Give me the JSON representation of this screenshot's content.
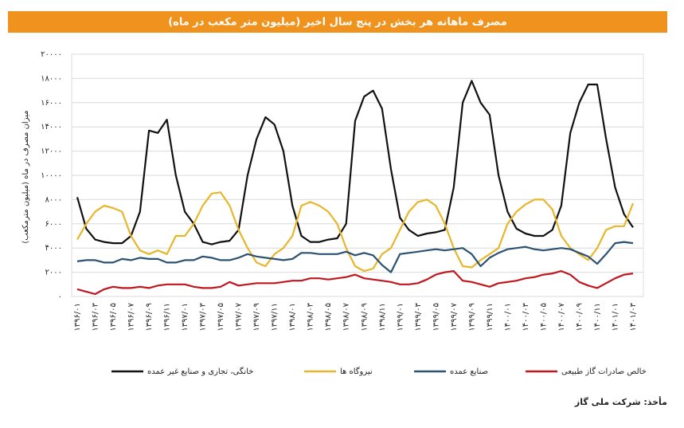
{
  "chart_data": {
    "type": "line",
    "title": "مصرف ماهانه هر بخش در پنج سال اخیر (میلیون متر مکعب در ماه)",
    "y_label": "میزان مصرف در ماه (میلیون مترمکعب)",
    "source": "مأخذ: شرکت ملی گاز",
    "categories": [
      "۱۳۹۶/۰۱",
      null,
      "۱۳۹۶/۰۳",
      null,
      "۱۳۹۶/۰۵",
      null,
      "۱۳۹۶/۰۷",
      null,
      "۱۳۹۶/۰۹",
      null,
      "۱۳۹۶/۱۱",
      null,
      "۱۳۹۷/۰۱",
      null,
      "۱۳۹۷/۰۳",
      null,
      "۱۳۹۷/۰۵",
      null,
      "۱۳۹۷/۰۷",
      null,
      "۱۳۹۷/۰۹",
      null,
      "۱۳۹۷/۱۱",
      null,
      "۱۳۹۸/۰۱",
      null,
      "۱۳۹۸/۰۳",
      null,
      "۱۳۹۸/۰۵",
      null,
      "۱۳۹۸/۰۷",
      null,
      "۱۳۹۸/۰۹",
      null,
      "۱۳۹۸/۱۱",
      null,
      "۱۳۹۹/۰۱",
      null,
      "۱۳۹۹/۰۳",
      null,
      "۱۳۹۹/۰۵",
      null,
      "۱۳۹۹/۰۷",
      null,
      "۱۳۹۹/۰۹",
      null,
      "۱۳۹۹/۱۱",
      null,
      "۱۴۰۰/۰۱",
      null,
      "۱۴۰۰/۰۳",
      null,
      "۱۴۰۰/۰۵",
      null,
      "۱۴۰۰/۰۷",
      null,
      "۱۴۰۰/۰۹",
      null,
      "۱۴۰۰/۱۱",
      null,
      "۱۴۰۱/۰۱",
      null,
      "۱۴۰۱/۰۳"
    ],
    "series": [
      {
        "name": "خانگی، تجاری و صنایع غیر عمده",
        "color": "#111111",
        "values": [
          8200,
          5600,
          4700,
          4500,
          4400,
          4400,
          5000,
          7000,
          13700,
          13500,
          14600,
          10000,
          7000,
          6000,
          4500,
          4300,
          4500,
          4600,
          5500,
          10000,
          13000,
          14800,
          14200,
          12000,
          7500,
          5000,
          4500,
          4500,
          4700,
          4800,
          6000,
          14500,
          16500,
          17000,
          15500,
          10500,
          6500,
          5500,
          5000,
          5200,
          5300,
          5500,
          9000,
          16000,
          17800,
          16000,
          15000,
          10000,
          7000,
          5600,
          5200,
          5000,
          5000,
          5500,
          7500,
          13500,
          16000,
          17500,
          17500,
          13000,
          9000,
          6800,
          5700
        ]
      },
      {
        "name": "نیروگاه ها",
        "color": "#e8b62a",
        "values": [
          4700,
          6000,
          7000,
          7500,
          7300,
          7000,
          5000,
          3800,
          3500,
          3800,
          3500,
          5000,
          5000,
          6000,
          7500,
          8500,
          8600,
          7500,
          5500,
          4000,
          2800,
          2500,
          3500,
          4000,
          5000,
          7500,
          7800,
          7500,
          7000,
          6000,
          4000,
          2500,
          2100,
          2300,
          3500,
          4000,
          5500,
          7000,
          7800,
          8000,
          7500,
          6000,
          4000,
          2500,
          2400,
          3000,
          3500,
          4000,
          6000,
          7000,
          7600,
          8000,
          8000,
          7200,
          5000,
          4000,
          3500,
          3000,
          4000,
          5500,
          5800,
          5800,
          7700
        ]
      },
      {
        "name": "صنایع عمده",
        "color": "#2b5273",
        "values": [
          2900,
          3000,
          3000,
          2800,
          2800,
          3100,
          3000,
          3200,
          3100,
          3100,
          2800,
          2800,
          3000,
          3000,
          3300,
          3200,
          3000,
          3000,
          3200,
          3500,
          3300,
          3200,
          3100,
          3000,
          3100,
          3600,
          3600,
          3500,
          3500,
          3500,
          3700,
          3400,
          3600,
          3400,
          2600,
          2000,
          3500,
          3600,
          3700,
          3800,
          3900,
          3800,
          3900,
          4000,
          3500,
          2500,
          3200,
          3600,
          3900,
          4000,
          4100,
          3900,
          3800,
          3900,
          4000,
          3900,
          3600,
          3300,
          2700,
          3500,
          4400,
          4500,
          4400
        ]
      },
      {
        "name": "خالص صادرات گاز طبیعی",
        "color": "#c0161d",
        "values": [
          600,
          400,
          200,
          600,
          800,
          700,
          700,
          800,
          700,
          900,
          1000,
          1000,
          1000,
          800,
          700,
          700,
          800,
          1200,
          900,
          1000,
          1100,
          1100,
          1100,
          1200,
          1300,
          1300,
          1500,
          1500,
          1400,
          1500,
          1600,
          1800,
          1500,
          1400,
          1300,
          1200,
          1000,
          1000,
          1100,
          1400,
          1800,
          2000,
          2100,
          1300,
          1200,
          1000,
          800,
          1100,
          1200,
          1300,
          1500,
          1600,
          1800,
          1900,
          2100,
          1800,
          1200,
          900,
          700,
          1100,
          1500,
          1800,
          1900
        ]
      }
    ],
    "ylim": [
      0,
      20000
    ],
    "yticks": [
      {
        "value": 0,
        "label": "۰"
      },
      {
        "value": 2000,
        "label": "۲۰۰۰"
      },
      {
        "value": 4000,
        "label": "۴۰۰۰"
      },
      {
        "value": 6000,
        "label": "۶۰۰۰"
      },
      {
        "value": 8000,
        "label": "۸۰۰۰"
      },
      {
        "value": 10000,
        "label": "۱۰۰۰۰"
      },
      {
        "value": 12000,
        "label": "۱۲۰۰۰"
      },
      {
        "value": 14000,
        "label": "۱۴۰۰۰"
      },
      {
        "value": 16000,
        "label": "۱۶۰۰۰"
      },
      {
        "value": 18000,
        "label": "۱۸۰۰۰"
      },
      {
        "value": 20000,
        "label": "۲۰۰۰۰"
      }
    ],
    "grid": true
  }
}
